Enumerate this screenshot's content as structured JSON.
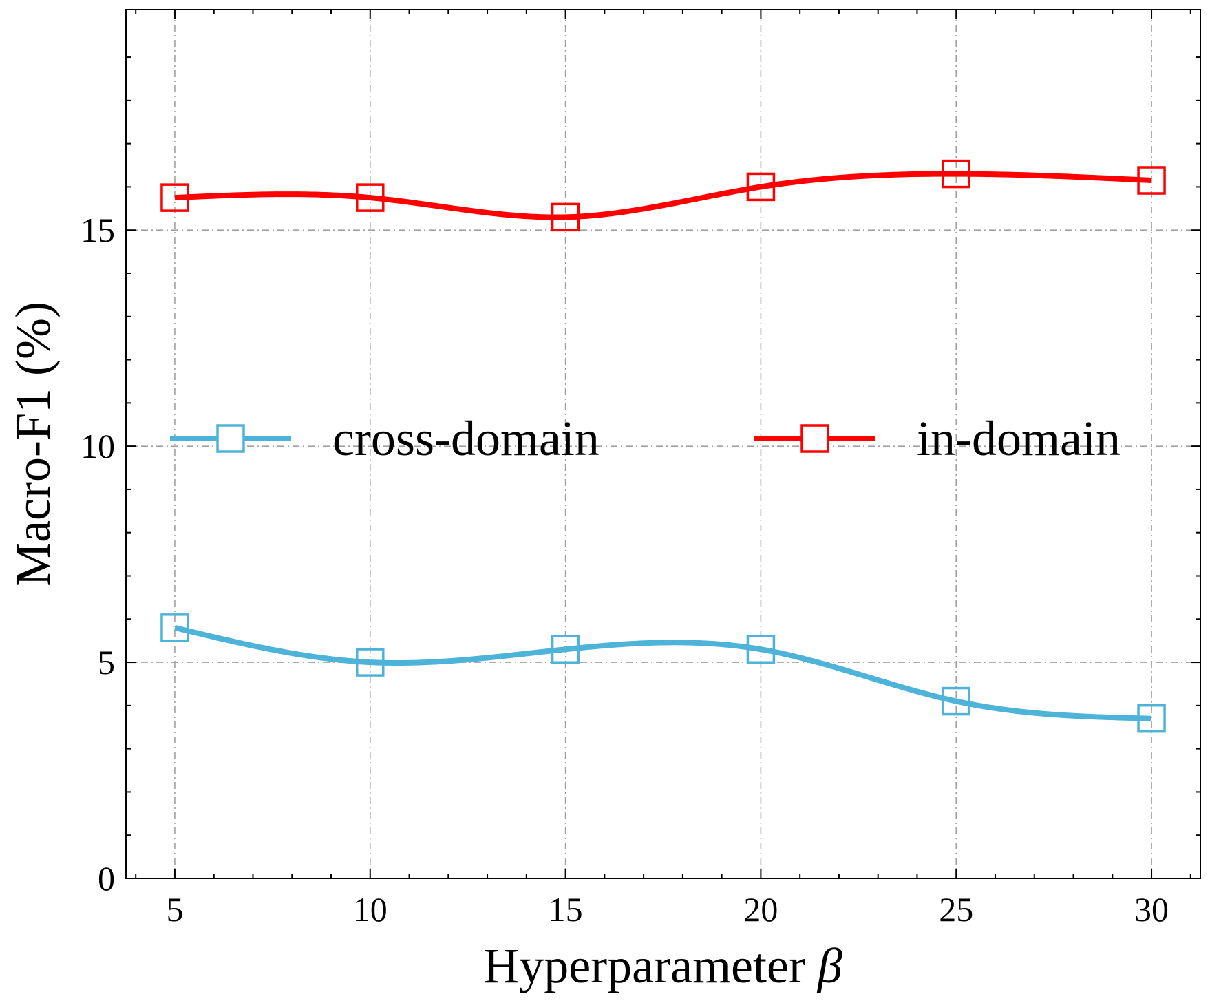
{
  "chart_data": {
    "type": "line",
    "x": [
      5,
      10,
      15,
      20,
      25,
      30
    ],
    "xlabel_prefix": "Hyperparameter ",
    "xlabel_symbol": "β",
    "ylabel": "Macro-F1 (%)",
    "xlim": [
      3.75,
      31.25
    ],
    "ylim": [
      0,
      20.1
    ],
    "xticks": [
      "5",
      "10",
      "15",
      "20",
      "25",
      "30"
    ],
    "yticks": [
      "0",
      "5",
      "10",
      "15"
    ],
    "grid": true,
    "legend_position": "center",
    "series": [
      {
        "name": "cross-domain",
        "color": "#4eb3d9",
        "marker": "square-open",
        "values": [
          5.8,
          5.0,
          5.3,
          5.3,
          4.1,
          3.7
        ]
      },
      {
        "name": "in-domain",
        "color": "#ff0000",
        "marker": "square-open",
        "values": [
          15.75,
          15.75,
          15.3,
          16.0,
          16.3,
          16.15
        ]
      }
    ]
  }
}
